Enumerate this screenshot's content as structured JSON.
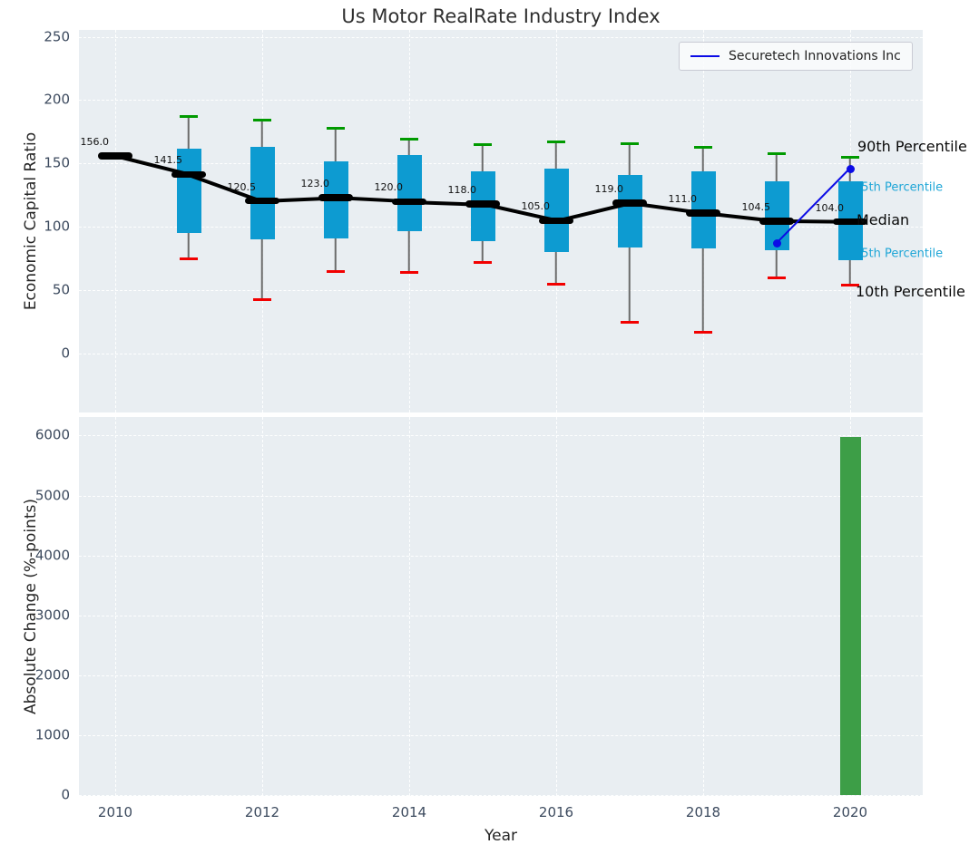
{
  "figure": {
    "title": "Us Motor RealRate Industry Index"
  },
  "legend": {
    "label": "Securetech Innovations Inc"
  },
  "colors": {
    "axes_bg": "#e9eef2",
    "grid": "#ffffff",
    "box_fill": "#0d9bd1",
    "whisker": "#6b6b6b",
    "cap_90th": "#009a00",
    "cap_10th": "#f20000",
    "median_line": "#000000",
    "series_line": "#0b0be6",
    "bar_fill": "#3d9e47",
    "tick_label": "#3c4a5e",
    "annotation_cyan": "#1fa6d7",
    "annotation_black": "#0a0a0a"
  },
  "chart_data": [
    {
      "type": "boxplot-with-line",
      "title": "Us Motor RealRate Industry Index",
      "ylabel": "Economic Capital Ratio",
      "yticks": [
        250,
        200,
        150,
        100,
        50,
        0
      ],
      "xticks": [
        2010,
        2012,
        2014,
        2016,
        2018,
        2020
      ],
      "ylim": [
        -46,
        255
      ],
      "grid": true,
      "boxes": [
        {
          "year": 2010,
          "median": 156.0,
          "label": "156.0"
        },
        {
          "year": 2011,
          "median": 141.5,
          "label": "141.5",
          "p10": 75,
          "q25": 95,
          "q75": 162,
          "p90": 187
        },
        {
          "year": 2012,
          "median": 120.5,
          "label": "120.5",
          "p10": 43,
          "q25": 90,
          "q75": 163,
          "p90": 184
        },
        {
          "year": 2013,
          "median": 123.0,
          "label": "123.0",
          "p10": 65,
          "q25": 91,
          "q75": 152,
          "p90": 178
        },
        {
          "year": 2014,
          "median": 120.0,
          "label": "120.0",
          "p10": 64,
          "q25": 97,
          "q75": 157,
          "p90": 169
        },
        {
          "year": 2015,
          "median": 118.0,
          "label": "118.0",
          "p10": 72,
          "q25": 89,
          "q75": 144,
          "p90": 165
        },
        {
          "year": 2016,
          "median": 105.0,
          "label": "105.0",
          "p10": 55,
          "q25": 80,
          "q75": 146,
          "p90": 167
        },
        {
          "year": 2017,
          "median": 119.0,
          "label": "119.0",
          "p10": 25,
          "q25": 84,
          "q75": 141,
          "p90": 166
        },
        {
          "year": 2018,
          "median": 111.0,
          "label": "111.0",
          "p10": 17,
          "q25": 83,
          "q75": 144,
          "p90": 163
        },
        {
          "year": 2019,
          "median": 104.5,
          "label": "104.5",
          "p10": 60,
          "q25": 82,
          "q75": 136,
          "p90": 158
        },
        {
          "year": 2020,
          "median": 104.0,
          "label": "104.0",
          "p10": 54,
          "q25": 74,
          "q75": 136,
          "p90": 155
        }
      ],
      "series": [
        {
          "name": "Securetech Innovations Inc",
          "points": [
            [
              2019,
              87
            ],
            [
              2020,
              146
            ]
          ]
        }
      ],
      "annotations": [
        {
          "text": "90th Percentile",
          "value": 163,
          "style": "black"
        },
        {
          "text": "75th Percentile",
          "value": 131,
          "style": "cyan"
        },
        {
          "text": "Median",
          "value": 105,
          "style": "black"
        },
        {
          "text": "25th Percentile",
          "value": 79,
          "style": "cyan"
        },
        {
          "text": "10th Percentile",
          "value": 49,
          "style": "black"
        }
      ]
    },
    {
      "type": "bar",
      "ylabel": "Absolute Change (%-points)",
      "xlabel": "Year",
      "yticks": [
        6000,
        5000,
        4000,
        3000,
        2000,
        1000,
        0
      ],
      "xticks": [
        2010,
        2012,
        2014,
        2016,
        2018,
        2020
      ],
      "ylim": [
        0,
        6300
      ],
      "grid": true,
      "categories": [
        2020
      ],
      "values": [
        5980
      ]
    }
  ]
}
